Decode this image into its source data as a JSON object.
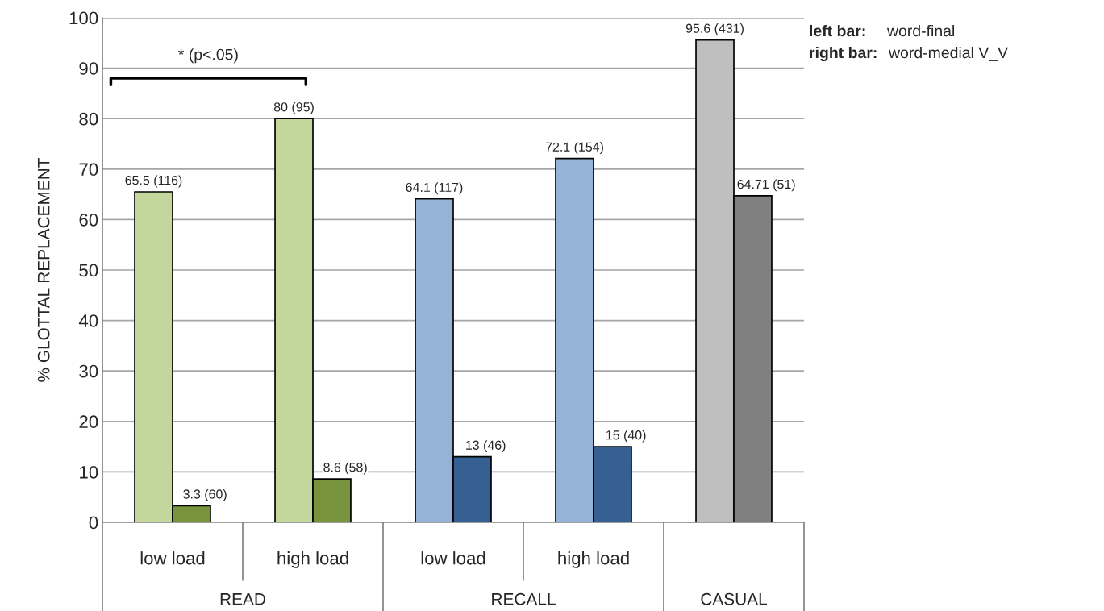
{
  "chart_data": {
    "type": "bar",
    "ylabel": "% GLOTTAL REPLACEMENT",
    "categories": [
      "low load",
      "high load",
      "low load",
      "high load",
      null
    ],
    "series": [
      {
        "colors": [
          "#c3d69b",
          "#c3d69b",
          "#95b3d7",
          "#95b3d7",
          "#bfbfbf"
        ],
        "values": [
          65.5,
          80,
          64.1,
          72.1,
          95.6
        ],
        "value_labels": [
          "65.5 (116)",
          "80 (95)",
          "64.1 (117)",
          "72.1 (154)",
          "95.6 (431)"
        ]
      },
      {
        "colors": [
          "#77933c",
          "#77933c",
          "#376092",
          "#376092",
          "#808080"
        ],
        "values": [
          3.3,
          8.6,
          13,
          15,
          64.71
        ],
        "value_labels": [
          "3.3 (60)",
          "8.6 (58)",
          "13 (46)",
          "15 (40)",
          "64.71 (51)"
        ]
      }
    ],
    "ylim": [
      0,
      100
    ],
    "yticks": [
      0,
      10,
      20,
      30,
      40,
      50,
      60,
      70,
      80,
      90,
      100
    ],
    "grid": "y",
    "annotations": [
      "* (p<.05)",
      "READ",
      "RECALL",
      "CASUAL",
      "left bar:",
      "word-final",
      "right bar:",
      "word-medial V_V"
    ]
  }
}
